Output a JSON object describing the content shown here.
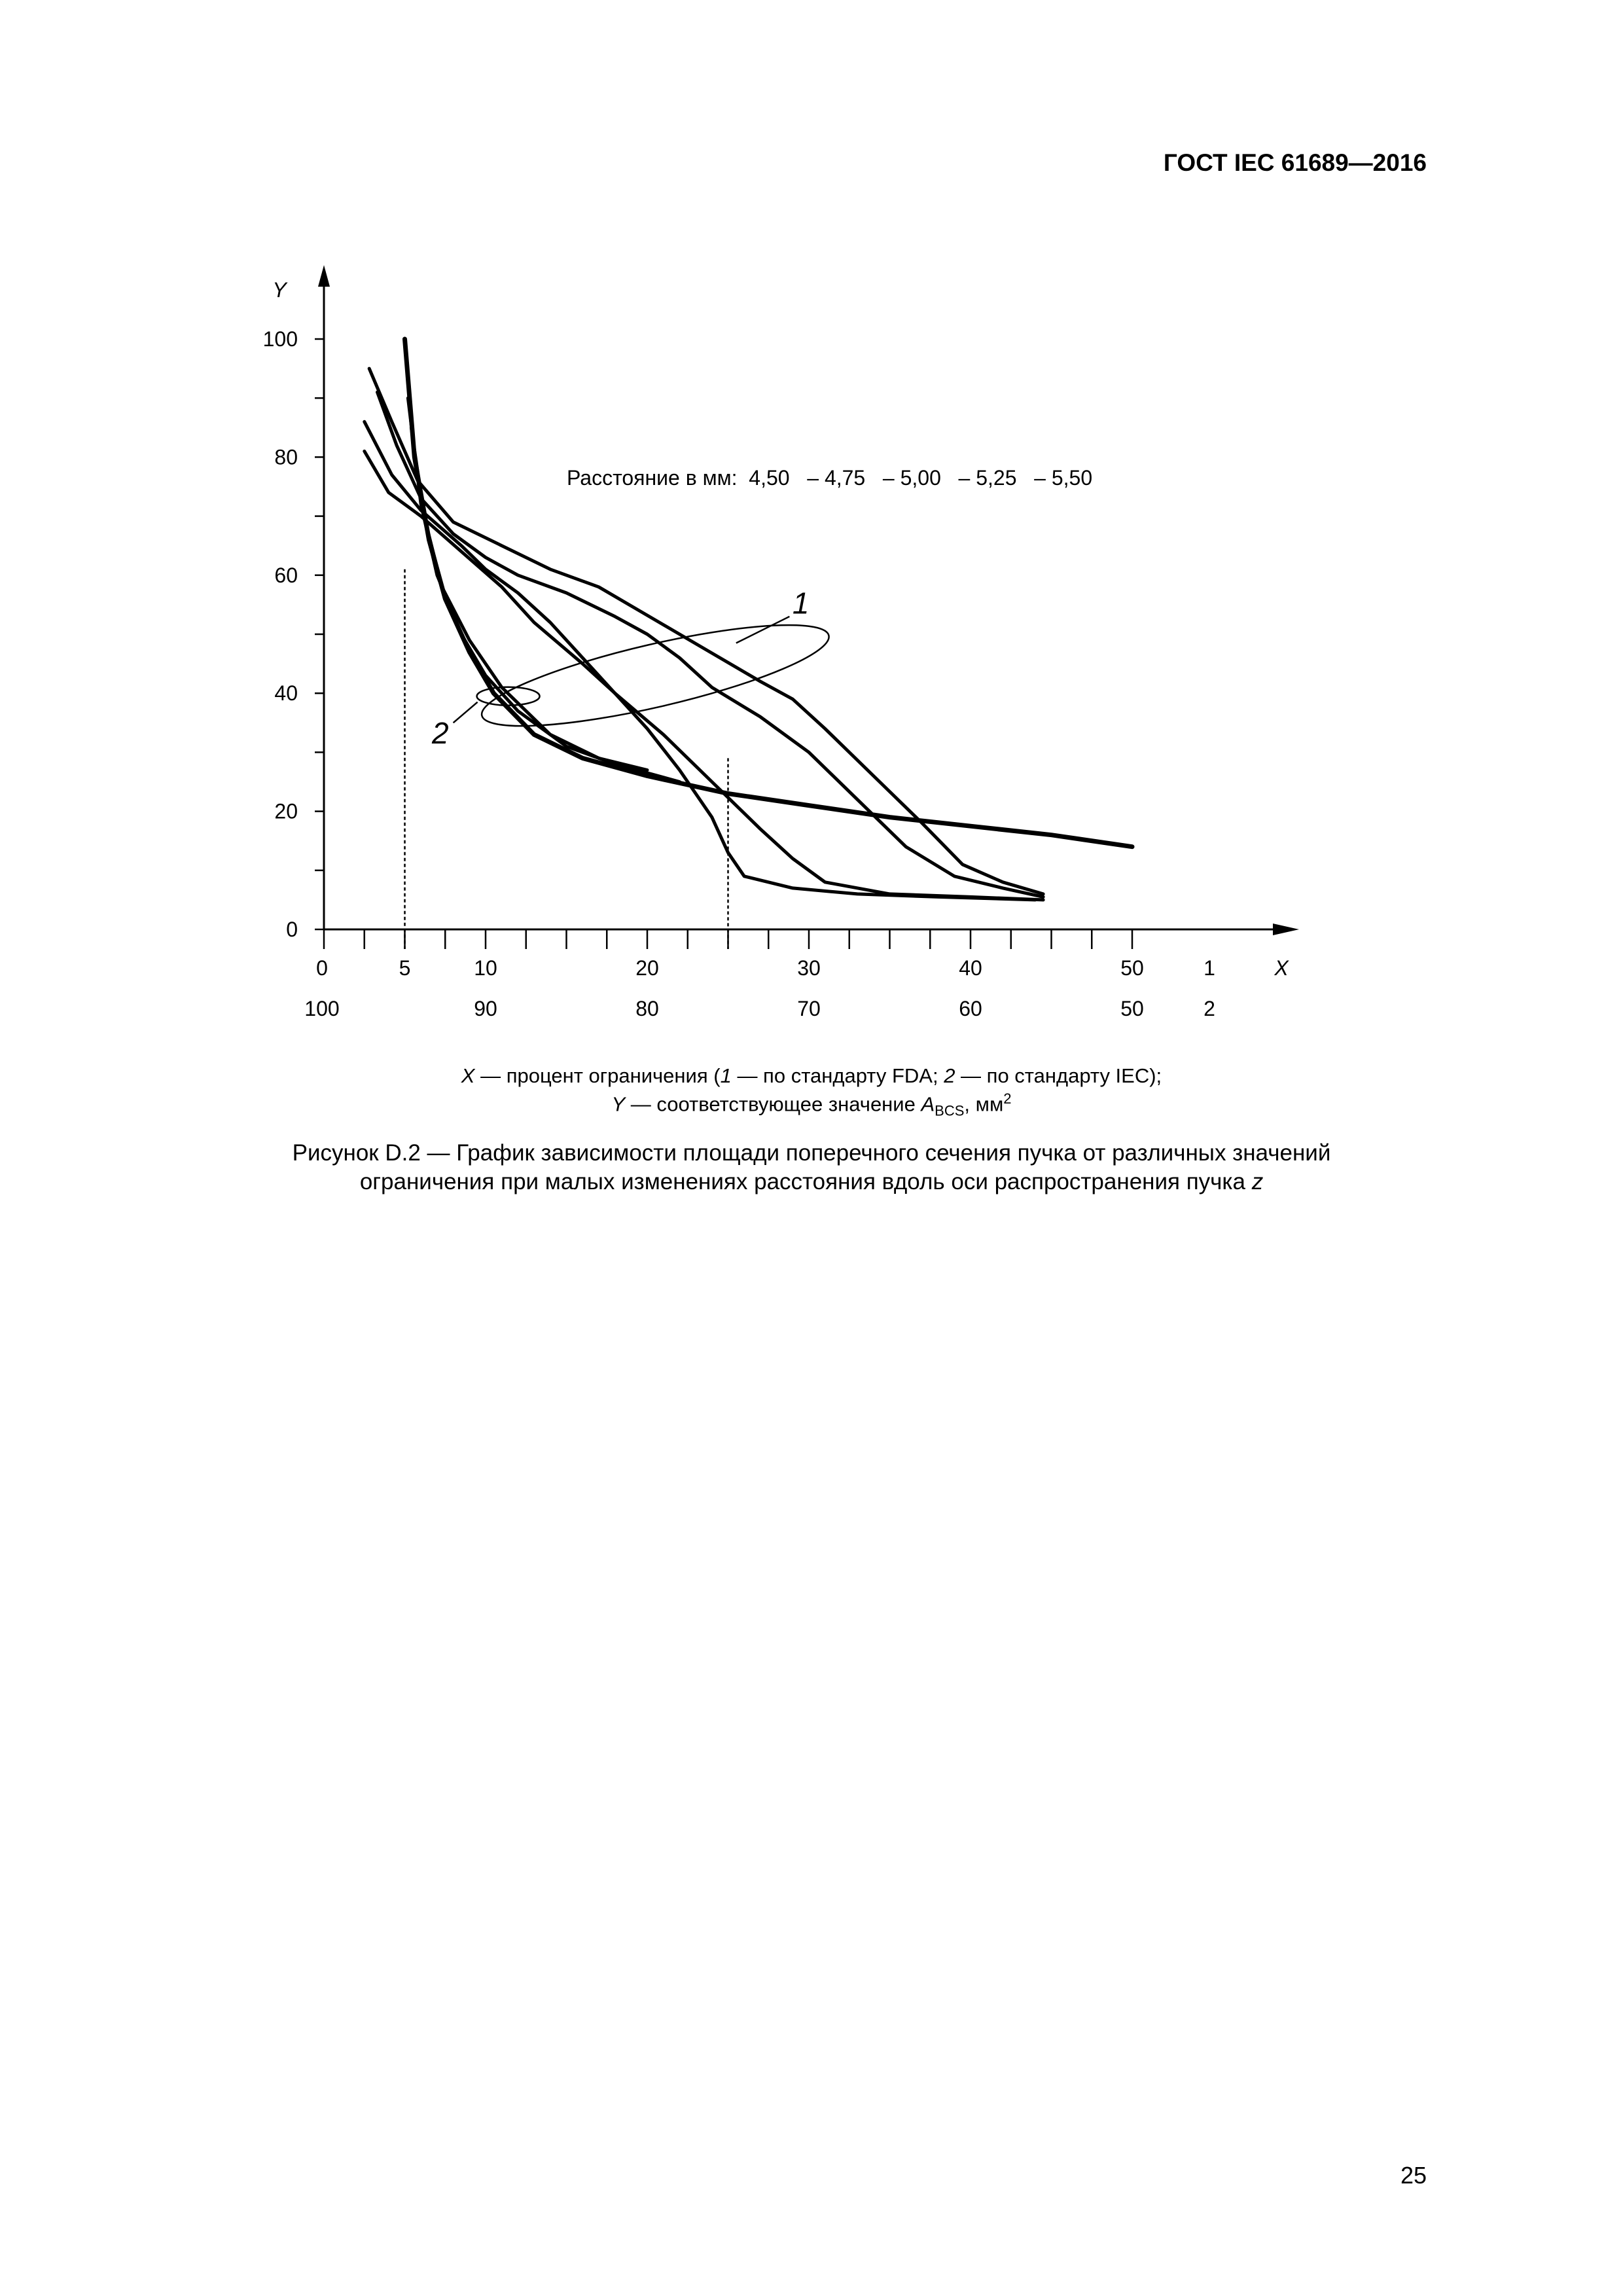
{
  "header": {
    "doc_code": "ГОСТ IEC 61689—2016"
  },
  "footer": {
    "page_number": "25"
  },
  "notes": {
    "x_line": {
      "x": "X",
      "a": " — процент ограничения (",
      "n1": "1",
      "b": " — по стандарту FDA; ",
      "n2": "2",
      "c": " — по стандарту IEC);"
    },
    "y_line": {
      "y": "Y",
      "a": " — соответствующее значение ",
      "sym": "A",
      "sub": "BCS",
      "b": ", мм",
      "sup": "2"
    }
  },
  "caption": {
    "line1": "Рисунок D.2 — График зависимости площади поперечного сечения пучка от различных значений",
    "line2_text": "ограничения при малых изменениях расстояния вдоль оси распространения пучка ",
    "line2_var": "z"
  },
  "chart_data": {
    "type": "line",
    "title": "",
    "xlabel": "X",
    "ylabel": "Y",
    "xlim": [
      0,
      55
    ],
    "ylim": [
      0,
      100
    ],
    "x_ticks": [
      0,
      5,
      10,
      20,
      30,
      40,
      50
    ],
    "x_ticks_secondary": [
      {
        "x": 0,
        "label": "100"
      },
      {
        "x": 10,
        "label": "90"
      },
      {
        "x": 20,
        "label": "80"
      },
      {
        "x": 30,
        "label": "70"
      },
      {
        "x": 40,
        "label": "60"
      },
      {
        "x": 50,
        "label": "50"
      }
    ],
    "scale_labels": {
      "row1": "1",
      "row2": "2"
    },
    "y_ticks": [
      0,
      20,
      40,
      60,
      80,
      100
    ],
    "grid": false,
    "legend_text": "Расстояние в мм:  4,50   – 4,75   – 5,00   – 5,25   – 5,50",
    "annotations": [
      {
        "label": "1",
        "group": "FDA curves"
      },
      {
        "label": "2",
        "group": "IEC curves"
      }
    ],
    "reference_lines_x": [
      5,
      25
    ],
    "series": [
      {
        "group": "1",
        "points": [
          [
            3.3,
            91
          ],
          [
            4.5,
            82
          ],
          [
            6,
            73
          ],
          [
            8,
            67
          ],
          [
            10,
            63
          ],
          [
            12,
            60
          ],
          [
            15,
            57
          ],
          [
            18,
            53
          ],
          [
            20,
            50
          ],
          [
            22,
            46
          ],
          [
            24,
            41
          ],
          [
            27,
            36
          ],
          [
            30,
            30
          ],
          [
            33,
            22
          ],
          [
            36,
            14
          ],
          [
            39,
            9
          ],
          [
            42,
            7
          ],
          [
            44.5,
            5.5
          ]
        ]
      },
      {
        "group": "1",
        "points": [
          [
            2.8,
            95
          ],
          [
            4.2,
            86
          ],
          [
            5.8,
            76
          ],
          [
            8,
            69
          ],
          [
            11,
            65
          ],
          [
            14,
            61
          ],
          [
            17,
            58
          ],
          [
            19.5,
            54
          ],
          [
            22,
            50
          ],
          [
            24.5,
            46
          ],
          [
            27,
            42
          ],
          [
            29,
            39
          ],
          [
            31,
            34
          ],
          [
            34,
            26
          ],
          [
            37,
            18
          ],
          [
            39.5,
            11
          ],
          [
            42,
            8
          ],
          [
            44.5,
            6
          ]
        ]
      },
      {
        "group": "1",
        "points": [
          [
            2.5,
            86
          ],
          [
            4.2,
            77
          ],
          [
            6,
            71
          ],
          [
            8.5,
            65
          ],
          [
            10,
            61
          ],
          [
            12,
            57
          ],
          [
            14,
            52
          ],
          [
            16,
            46
          ],
          [
            18,
            40
          ],
          [
            20,
            34
          ],
          [
            22,
            27
          ],
          [
            24,
            19
          ],
          [
            25,
            13
          ],
          [
            26,
            9
          ],
          [
            29,
            7
          ],
          [
            33,
            6
          ],
          [
            38,
            5.5
          ],
          [
            44,
            5
          ]
        ]
      },
      {
        "group": "1",
        "points": [
          [
            2.5,
            81
          ],
          [
            4,
            74
          ],
          [
            6,
            70
          ],
          [
            8.5,
            64
          ],
          [
            11,
            58
          ],
          [
            13,
            52
          ],
          [
            16,
            45
          ],
          [
            18,
            40
          ],
          [
            21,
            33
          ],
          [
            24,
            25
          ],
          [
            27,
            17
          ],
          [
            29,
            12
          ],
          [
            31,
            8
          ],
          [
            35,
            6
          ],
          [
            40,
            5.5
          ],
          [
            44.5,
            5
          ]
        ]
      },
      {
        "group": "2",
        "points": [
          [
            5,
            100
          ],
          [
            5.6,
            80
          ],
          [
            6.5,
            66
          ],
          [
            7.5,
            56
          ],
          [
            9,
            47
          ],
          [
            10.5,
            40
          ],
          [
            13,
            33
          ],
          [
            16,
            29
          ],
          [
            20,
            26
          ],
          [
            25,
            23
          ],
          [
            30,
            21
          ],
          [
            35,
            19
          ],
          [
            40,
            17.5
          ],
          [
            45,
            16
          ],
          [
            50,
            14
          ]
        ]
      },
      {
        "group": "2",
        "points": [
          [
            5.2,
            90
          ],
          [
            6,
            72
          ],
          [
            7,
            60
          ],
          [
            8.5,
            50
          ],
          [
            10,
            43
          ],
          [
            12,
            37
          ],
          [
            15,
            31
          ],
          [
            18,
            28
          ],
          [
            22,
            25
          ]
        ]
      },
      {
        "group": "2",
        "points": [
          [
            5.4,
            85
          ],
          [
            6.2,
            70
          ],
          [
            7.3,
            58
          ],
          [
            9,
            49
          ],
          [
            11,
            41
          ],
          [
            14,
            33
          ],
          [
            17,
            29
          ],
          [
            20,
            27
          ]
        ]
      }
    ]
  }
}
